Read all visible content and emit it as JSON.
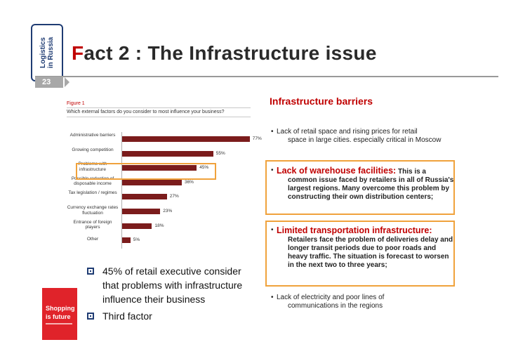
{
  "side_tab": {
    "line1": "Logistics",
    "line2": "in Russia"
  },
  "title": {
    "first_letter": "F",
    "rest": "act 2 : The Infrastructure issue"
  },
  "page_number": "23",
  "figure": {
    "label": "Figure 1",
    "question": "Which external factors do you consider to most influence your business?"
  },
  "chart_data": {
    "type": "bar",
    "title": "",
    "categories": [
      "Administrative barriers",
      "Growing competition",
      "Problems with infrastructure",
      "Possible reduction of disposable income",
      "Tax legislation / regimes",
      "Currency exchange rates fluctuation",
      "Entrance of foreign players",
      "Other"
    ],
    "values": [
      77,
      55,
      45,
      36,
      27,
      23,
      18,
      5
    ],
    "value_labels": [
      "77%",
      "55%",
      "45%",
      "36%",
      "27%",
      "23%",
      "18%",
      "5%"
    ],
    "xlim": [
      0,
      100
    ],
    "color": "#7b1c1c",
    "grid": false,
    "orientation": "horizontal"
  },
  "left_bullets": [
    {
      "text": "45% of retail executive consider that problems with infrastructure influence their business"
    },
    {
      "text": "Third factor"
    }
  ],
  "thumbnail": {
    "line1": "Shopping",
    "line2": "is future"
  },
  "right": {
    "heading": "Infrastructure barriers",
    "item1": {
      "bullet": "•",
      "lead": "Lack of retail space and rising prices for retail",
      "cont": "space in large cities. especially critical in Moscow"
    },
    "item2": {
      "bullet": "•",
      "highlight": "Lack of warehouse facilities:",
      "lead_rest": " This is a",
      "cont": "common issue faced by retailers in all of Russia's largest regions. Many overcome this problem by constructing their own distribution centers;"
    },
    "item3": {
      "bullet": "•",
      "highlight": "Limited transportation infrastructure:",
      "cont": "Retailers face the problem of deliveries delay and longer transit periods due to poor roads and heavy traffic. The situation is forecast to worsen in the next two to three years;"
    },
    "item4": {
      "bullet": "•",
      "lead": "Lack of electricity and poor lines of",
      "cont": "communications in the regions"
    }
  },
  "colors": {
    "accent_red": "#c00000",
    "highlight_orange": "#f0a23c",
    "navy": "#1f3c73",
    "bar": "#7b1c1c"
  }
}
